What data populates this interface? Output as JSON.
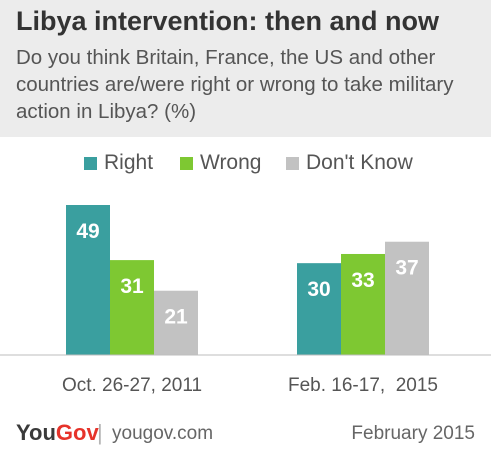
{
  "header": {
    "title": "Libya intervention: then and now",
    "subtitle": "Do you think Britain, France, the US and other countries are/were right or wrong to take military action in Libya? (%)"
  },
  "legend": {
    "items": [
      {
        "label": "Right",
        "color": "#3a9f9f"
      },
      {
        "label": "Wrong",
        "color": "#7ec832"
      },
      {
        "label": "Don't Know",
        "color": "#c2c2c2"
      }
    ]
  },
  "chart_data": {
    "type": "bar",
    "title": "Libya intervention: then and now",
    "subtitle": "Do you think Britain, France, the US and other countries are/were right or wrong to take military action in Libya? (%)",
    "categories": [
      "Oct. 26-27, 2011",
      "Feb. 16-17,  2015"
    ],
    "series": [
      {
        "name": "Right",
        "values": [
          49,
          30
        ],
        "color": "#3a9f9f"
      },
      {
        "name": "Wrong",
        "values": [
          31,
          33
        ],
        "color": "#7ec832"
      },
      {
        "name": "Don't Know",
        "values": [
          21,
          37
        ],
        "color": "#c2c2c2"
      }
    ],
    "ylim": [
      0,
      49
    ],
    "grid": false,
    "legend_position": "top-center",
    "data_labels": true
  },
  "footer": {
    "brand": {
      "you": "You",
      "gov": "Gov"
    },
    "separator": "|",
    "site": "yougov.com",
    "date": "February 2015"
  }
}
